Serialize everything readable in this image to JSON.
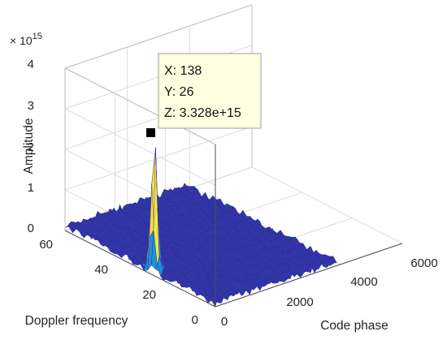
{
  "chart_data": {
    "type": "surface",
    "title": "",
    "xlabel": "Code phase",
    "ylabel": "Doppler frequency",
    "zlabel": "Amplitude",
    "z_exponent_label": "× 10",
    "z_exponent_value": "15",
    "xlim": [
      0,
      6000
    ],
    "ylim": [
      0,
      60
    ],
    "zlim": [
      0,
      4
    ],
    "x_ticks": [
      "0",
      "2000",
      "4000",
      "6000"
    ],
    "y_ticks": [
      "0",
      "20",
      "40",
      "60"
    ],
    "z_ticks": [
      "0",
      "1",
      "2",
      "3",
      "4"
    ],
    "grid": true,
    "peak": {
      "code_phase": 138,
      "doppler": 26,
      "amplitude": 3328000000000000.0
    },
    "noise_floor_amplitude_max": 200000000000000.0,
    "colormap": "parula",
    "datatip": {
      "x_text": "X: 138",
      "y_text": "Y: 26",
      "z_text": "Z: 3.328e+15"
    },
    "colors": {
      "low": "#3236a8",
      "mid": "#1e8fd8",
      "high": "#f5e33a",
      "tip_bg": "#ffffe1",
      "tip_border": "#9c9c9c"
    }
  }
}
